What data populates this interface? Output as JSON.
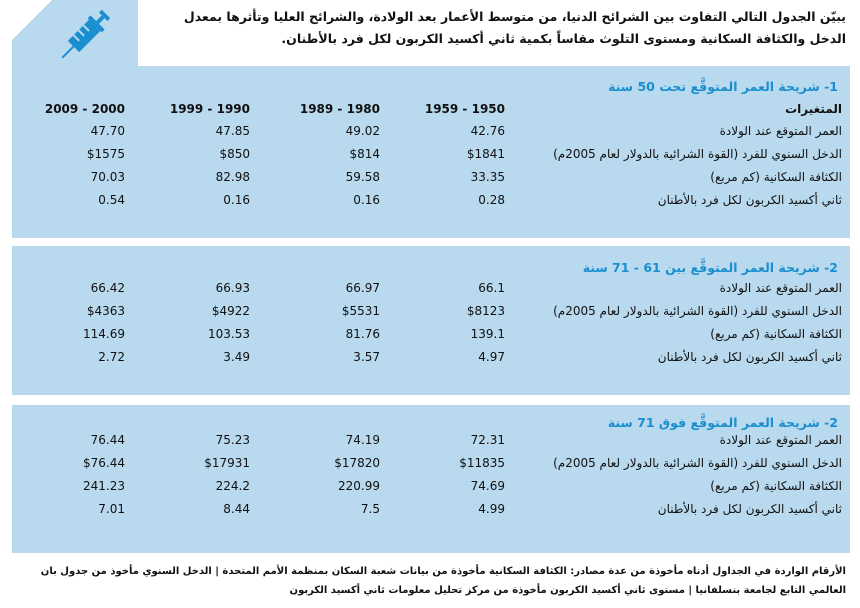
{
  "intro": "يبيّن الجدول التالي التفاوت بين الشرائح الدنيا، من متوسط الأعمار بعد الولادة، والشرائح العليا وتأثرها بمعدل الدخل والكثافة السكانية ومستوى التلوث مقاساً بكمية ثاني أكسيد الكربون لكل فرد بالأطنان.",
  "icon": "syringe-icon",
  "colors": {
    "panel": "#b9d9ee",
    "accent": "#1a8fd0"
  },
  "header": {
    "variables": "المتغيرات",
    "periods": [
      "1959 - 1950",
      "1989 - 1980",
      "1999 - 1990",
      "2009 - 2000"
    ]
  },
  "labels": [
    "العمر المتوقع عند الولادة",
    "الدخل السنوي للفرد (القوة الشرائية بالدولار لعام 2005م)",
    "الكثافة السكانية (كم مربع)",
    "ثاني أكسيد الكربون لكل فرد بالأطنان"
  ],
  "sections": [
    {
      "title": "1- شريحة العمر المتوقَّع تحت 50 سنة",
      "rows": [
        [
          "42.76",
          "49.02",
          "47.85",
          "47.70"
        ],
        [
          "$1841",
          "$814",
          "$850",
          "$1575"
        ],
        [
          "33.35",
          "59.58",
          "82.98",
          "70.03"
        ],
        [
          "0.28",
          "0.16",
          "0.16",
          "0.54"
        ]
      ]
    },
    {
      "title": "2- شريحة العمر المتوقَّع بين 61 - 71 سنة",
      "rows": [
        [
          "66.1",
          "66.97",
          "66.93",
          "66.42"
        ],
        [
          "$8123",
          "$5531",
          "$4922",
          "$4363"
        ],
        [
          "139.1",
          "81.76",
          "103.53",
          "114.69"
        ],
        [
          "4.97",
          "3.57",
          "3.49",
          "2.72"
        ]
      ]
    },
    {
      "title": "2- شريحة العمر المتوقَّع فوق 71 سنة",
      "rows": [
        [
          "72.31",
          "74.19",
          "75.23",
          "76.44"
        ],
        [
          "$11835",
          "$17820",
          "$17931",
          "$76.44"
        ],
        [
          "74.69",
          "220.99",
          "224.2",
          "241.23"
        ],
        [
          "4.99",
          "7.5",
          "8.44",
          "7.01"
        ]
      ]
    }
  ],
  "footnote": "الأرقام الواردة في الجداول أدناه مأخوذة من عدة مصادر: الكثافة السكانية مأخوذة من بيانات شعبة السكان بمنظمة الأمم المتحدة | الدخل السنوي مأخوذ من جدول بان العالمي التابع لجامعة بنسلفانيا | مستوى ثاني أكسيد الكربون مأخوذة من مركز تحليل معلومات ثاني أكسيد الكربون"
}
